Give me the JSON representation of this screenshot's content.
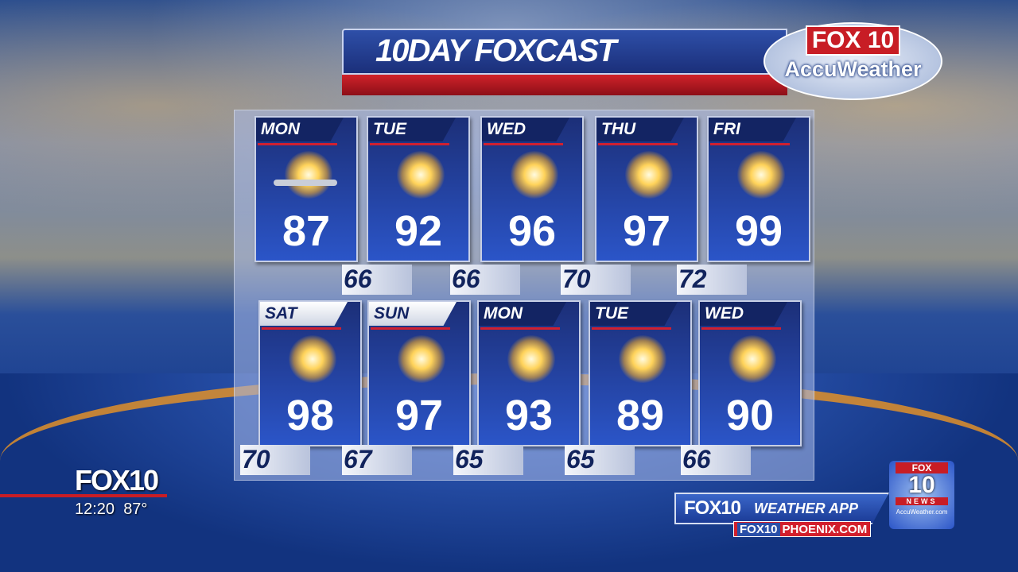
{
  "title": "10DAY FOXCAST",
  "logo": {
    "station": "FOX 10",
    "partner": "AccuWeather"
  },
  "days": [
    {
      "day": "MON",
      "high": "87",
      "low": "66",
      "icon": "partly-sunny-icon",
      "header": "dark"
    },
    {
      "day": "TUE",
      "high": "92",
      "low": "66",
      "icon": "sun-icon",
      "header": "dark"
    },
    {
      "day": "WED",
      "high": "96",
      "low": "70",
      "icon": "sun-icon",
      "header": "dark"
    },
    {
      "day": "THU",
      "high": "97",
      "low": "72",
      "icon": "sun-icon",
      "header": "dark"
    },
    {
      "day": "FRI",
      "high": "99",
      "low": "70",
      "icon": "sun-icon",
      "header": "dark"
    },
    {
      "day": "SAT",
      "high": "98",
      "low": "67",
      "icon": "sun-icon",
      "header": "light"
    },
    {
      "day": "SUN",
      "high": "97",
      "low": "65",
      "icon": "sun-icon",
      "header": "light"
    },
    {
      "day": "MON",
      "high": "93",
      "low": "65",
      "icon": "sun-icon",
      "header": "dark"
    },
    {
      "day": "TUE",
      "high": "89",
      "low": "66",
      "icon": "sun-icon",
      "header": "dark"
    },
    {
      "day": "WED",
      "high": "90",
      "low": "",
      "icon": "sun-icon",
      "header": "dark"
    }
  ],
  "bug": {
    "station": "FOX10",
    "time": "12:20",
    "temp": "87°"
  },
  "promo": {
    "station": "FOX10",
    "label": "WEATHER APP",
    "web_brand": "FOX10",
    "website": "PHOENIX.COM"
  },
  "badge": {
    "top": "FOX",
    "number": "10",
    "news": "NEWS",
    "site": "AccuWeather.com"
  },
  "colors": {
    "accent_red": "#c81d25",
    "navy": "#132463",
    "blue": "#2b55c8"
  }
}
